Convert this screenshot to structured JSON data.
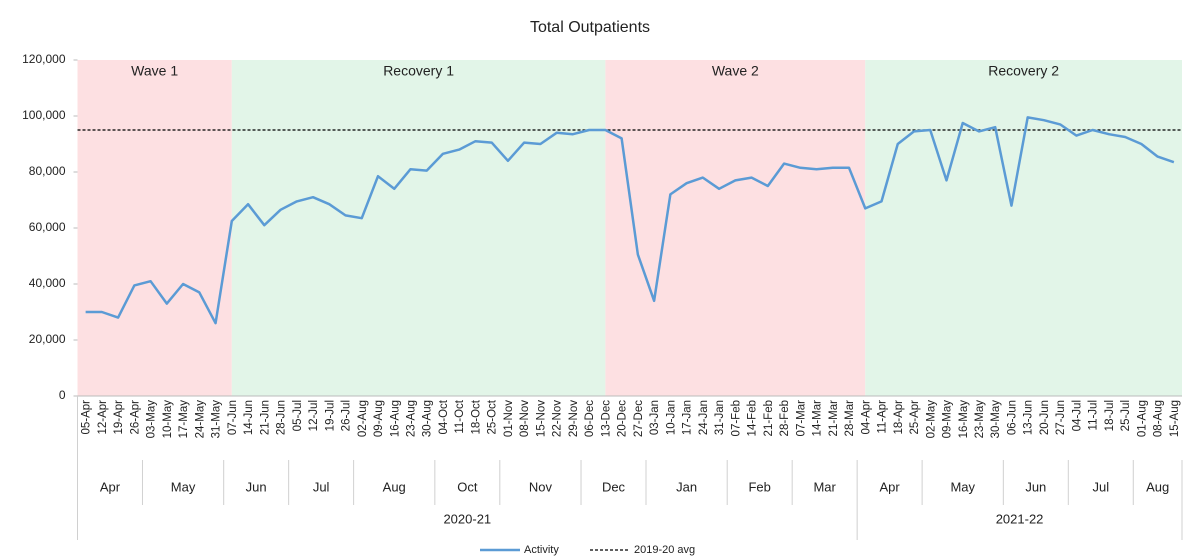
{
  "chart_data": {
    "type": "line",
    "title": "Total Outpatients",
    "categories": [
      "05-Apr",
      "12-Apr",
      "19-Apr",
      "26-Apr",
      "03-May",
      "10-May",
      "17-May",
      "24-May",
      "31-May",
      "07-Jun",
      "14-Jun",
      "21-Jun",
      "28-Jun",
      "05-Jul",
      "12-Jul",
      "19-Jul",
      "26-Jul",
      "02-Aug",
      "09-Aug",
      "16-Aug",
      "23-Aug",
      "30-Aug",
      "04-Oct",
      "11-Oct",
      "18-Oct",
      "25-Oct",
      "01-Nov",
      "08-Nov",
      "15-Nov",
      "22-Nov",
      "29-Nov",
      "06-Dec",
      "13-Dec",
      "20-Dec",
      "27-Dec",
      "03-Jan",
      "10-Jan",
      "17-Jan",
      "24-Jan",
      "31-Jan",
      "07-Feb",
      "14-Feb",
      "21-Feb",
      "28-Feb",
      "07-Mar",
      "14-Mar",
      "21-Mar",
      "28-Mar",
      "04-Apr",
      "11-Apr",
      "18-Apr",
      "25-Apr",
      "02-May",
      "09-May",
      "16-May",
      "23-May",
      "30-May",
      "06-Jun",
      "13-Jun",
      "20-Jun",
      "27-Jun",
      "04-Jul",
      "11-Jul",
      "18-Jul",
      "25-Jul",
      "01-Aug",
      "08-Aug",
      "15-Aug"
    ],
    "months": [
      "Apr",
      "May",
      "Jun",
      "Jul",
      "Aug",
      "Oct",
      "Nov",
      "Dec",
      "Jan",
      "Feb",
      "Mar",
      "Apr",
      "May",
      "Jun",
      "Jul",
      "Aug"
    ],
    "years": [
      "2020-21",
      "2021-22"
    ],
    "series": [
      {
        "name": "Activity",
        "color": "#5b9bd5",
        "values": [
          30000,
          30000,
          28000,
          39500,
          41000,
          33000,
          40000,
          37000,
          26000,
          62500,
          68500,
          61000,
          66500,
          69500,
          71000,
          68500,
          64500,
          63500,
          78500,
          74000,
          81000,
          80500,
          86500,
          88000,
          91000,
          90500,
          84000,
          90500,
          90000,
          94000,
          93500,
          95000,
          95000,
          92000,
          50500,
          34000,
          72000,
          76000,
          78000,
          74000,
          77000,
          78000,
          75000,
          83000,
          81500,
          81000,
          81500,
          81500,
          67000,
          69500,
          90000,
          94500,
          95000,
          77000,
          97500,
          94500,
          96000,
          68000,
          99500,
          98500,
          97000,
          93000,
          95000,
          93500,
          92500,
          90000,
          85500,
          83500
        ]
      }
    ],
    "reference_line": {
      "name": "2019-20 avg",
      "value": 95000,
      "color": "#000000"
    },
    "bands": [
      {
        "label": "Wave 1",
        "from": "05-Apr",
        "to": "07-Jun",
        "color": "#fde0e2"
      },
      {
        "label": "Recovery 1",
        "from": "07-Jun",
        "to": "13-Dec",
        "color": "#e2f5e8"
      },
      {
        "label": "Wave 2",
        "from": "13-Dec",
        "to": "04-Apr",
        "color": "#fde0e2"
      },
      {
        "label": "Recovery 2",
        "from": "04-Apr",
        "to": "15-Aug",
        "color": "#e2f5e8"
      }
    ],
    "ylim": [
      0,
      120000
    ],
    "yticks": [
      0,
      {
        "value": 20000,
        "label": "20,000"
      },
      {
        "value": 40000,
        "label": "40,000"
      },
      {
        "value": 60000,
        "label": "60,000"
      },
      {
        "value": 80000,
        "label": "80,000"
      },
      {
        "value": 100000,
        "label": "100,000"
      },
      {
        "value": 120000,
        "label": "120,000"
      }
    ],
    "legend": "bottom"
  }
}
